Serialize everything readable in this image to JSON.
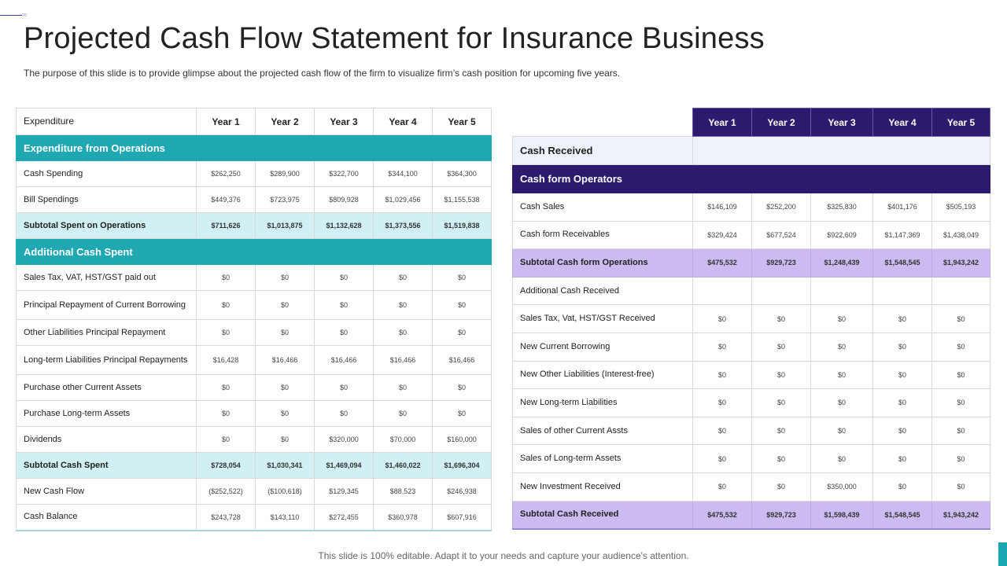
{
  "title": "Projected Cash Flow Statement for Insurance Business",
  "subtitle": "The purpose of this slide is to provide glimpse about the projected cash flow of the firm to visualize firm’s cash position for upcoming five years.",
  "footer": "This slide is 100% editable. Adapt it to your needs and capture your audience's attention.",
  "colors": {
    "teal": "#1fa8b2",
    "teal_light": "#d0f0f4",
    "purple": "#2d1a6e",
    "lavender": "#cbbbf0"
  },
  "left": {
    "header": [
      "Expenditure",
      "Year 1",
      "Year 2",
      "Year 3",
      "Year 4",
      "Year 5"
    ],
    "rows": [
      {
        "type": "section",
        "label": "Expenditure from Operations"
      },
      {
        "type": "row",
        "label": "Cash Spending",
        "values": [
          "$262,250",
          "$289,900",
          "$322,700",
          "$344,100",
          "$364,300"
        ]
      },
      {
        "type": "row",
        "label": "Bill Spendings",
        "values": [
          "$449,376",
          "$723,975",
          "$809,928",
          "$1,029,456",
          "$1,155,538"
        ]
      },
      {
        "type": "subtotal",
        "label": "Subtotal Spent on Operations",
        "values": [
          "$711,626",
          "$1,013,875",
          "$1,132,628",
          "$1,373,556",
          "$1,519,838"
        ]
      },
      {
        "type": "section",
        "label": "Additional Cash Spent"
      },
      {
        "type": "row",
        "label": "Sales Tax, VAT, HST/GST paid out",
        "values": [
          "$0",
          "$0",
          "$0",
          "$0",
          "$0"
        ]
      },
      {
        "type": "row",
        "label": "Principal Repayment of Current Borrowing",
        "values": [
          "$0",
          "$0",
          "$0",
          "$0",
          "$0"
        ]
      },
      {
        "type": "row",
        "label": "Other Liabilities Principal Repayment",
        "values": [
          "$0",
          "$0",
          "$0",
          "$0",
          "$0"
        ]
      },
      {
        "type": "row",
        "label": "Long-term Liabilities Principal Repayments",
        "values": [
          "$16,428",
          "$16,466",
          "$16,466",
          "$16,466",
          "$16,466"
        ]
      },
      {
        "type": "row",
        "label": "Purchase other Current Assets",
        "values": [
          "$0",
          "$0",
          "$0",
          "$0",
          "$0"
        ]
      },
      {
        "type": "row",
        "label": "Purchase Long-term Assets",
        "values": [
          "$0",
          "$0",
          "$0",
          "$0",
          "$0"
        ]
      },
      {
        "type": "row",
        "label": "Dividends",
        "values": [
          "$0",
          "$0",
          "$320,000",
          "$70,000",
          "$160,000"
        ]
      },
      {
        "type": "subtotal",
        "label": "Subtotal Cash Spent",
        "values": [
          "$728,054",
          "$1,030,341",
          "$1,469,094",
          "$1,460,022",
          "$1,696,304"
        ]
      },
      {
        "type": "row",
        "label": "New Cash Flow",
        "values": [
          "($252,522)",
          "($100,618)",
          "$129,345",
          "$88,523",
          "$246,938"
        ]
      },
      {
        "type": "row",
        "label": "Cash Balance",
        "values": [
          "$243,728",
          "$143,110",
          "$272,455",
          "$360,978",
          "$607,916"
        ]
      }
    ]
  },
  "right": {
    "header": [
      "Year 1",
      "Year 2",
      "Year 3",
      "Year 4",
      "Year 5"
    ],
    "rows": [
      {
        "type": "received",
        "label": "Cash Received"
      },
      {
        "type": "section",
        "label": "Cash form Operators"
      },
      {
        "type": "row",
        "label": "Cash Sales",
        "values": [
          "$146,109",
          "$252,200",
          "$325,830",
          "$401,176",
          "$505,193"
        ]
      },
      {
        "type": "row",
        "label": "Cash form Receivables",
        "values": [
          "$329,424",
          "$677,524",
          "$922,609",
          "$1,147,369",
          "$1,438,049"
        ]
      },
      {
        "type": "subtotal",
        "label": "Subtotal Cash form Operations",
        "values": [
          "$475,532",
          "$929,723",
          "$1,248,439",
          "$1,548,545",
          "$1,943,242"
        ]
      },
      {
        "type": "row",
        "label": "Additional Cash Received",
        "values": [
          "",
          "",
          "",
          "",
          ""
        ]
      },
      {
        "type": "row",
        "label": "Sales Tax, Vat, HST/GST Received",
        "values": [
          "$0",
          "$0",
          "$0",
          "$0",
          "$0"
        ]
      },
      {
        "type": "row",
        "label": "New Current Borrowing",
        "values": [
          "$0",
          "$0",
          "$0",
          "$0",
          "$0"
        ]
      },
      {
        "type": "row",
        "label": "New Other Liabilities (Interest-free)",
        "values": [
          "$0",
          "$0",
          "$0",
          "$0",
          "$0"
        ]
      },
      {
        "type": "row",
        "label": "New Long-term Liabilities",
        "values": [
          "$0",
          "$0",
          "$0",
          "$0",
          "$0"
        ]
      },
      {
        "type": "row",
        "label": "Sales of other Current Assts",
        "values": [
          "$0",
          "$0",
          "$0",
          "$0",
          "$0"
        ]
      },
      {
        "type": "row",
        "label": "Sales of Long-term Assets",
        "values": [
          "$0",
          "$0",
          "$0",
          "$0",
          "$0"
        ]
      },
      {
        "type": "row",
        "label": "New Investment Received",
        "values": [
          "$0",
          "$0",
          "$350,000",
          "$0",
          "$0"
        ]
      },
      {
        "type": "subtotal",
        "label": "Subtotal Cash Received",
        "values": [
          "$475,532",
          "$929,723",
          "$1,598,439",
          "$1,548,545",
          "$1,943,242"
        ]
      }
    ]
  }
}
